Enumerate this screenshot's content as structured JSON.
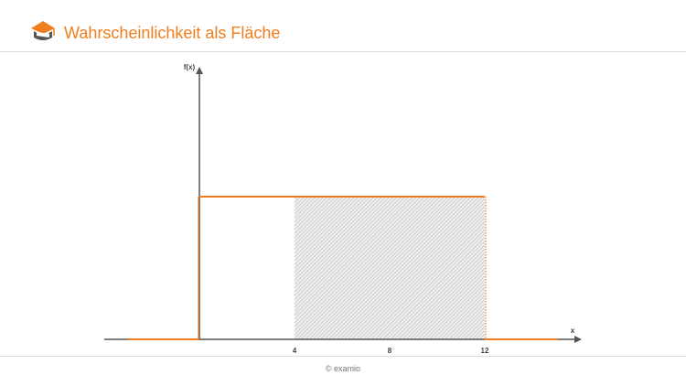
{
  "header": {
    "title": "Wahrscheinlichkeit als Fläche",
    "logo_icon": "book-cap-icon"
  },
  "footer": {
    "copyright": "© examio"
  },
  "colors": {
    "accent": "#f07d1e",
    "axis": "#555555",
    "hatch": "#b5b5b5",
    "rule": "#dddddd"
  },
  "chart_data": {
    "type": "uniform-density",
    "title": "",
    "xlabel": "x",
    "ylabel": "f(x)",
    "x_ticks": [
      4,
      8,
      12
    ],
    "density_support": [
      0,
      12
    ],
    "shaded_interval": [
      4,
      12
    ],
    "xlim": [
      -4,
      16
    ]
  }
}
